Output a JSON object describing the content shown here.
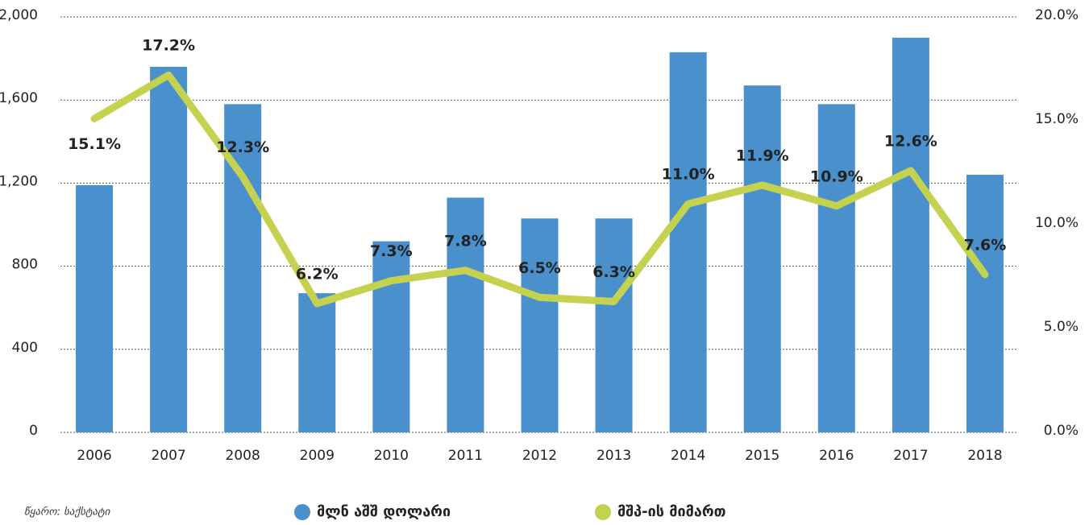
{
  "chart_data": {
    "type": "bar_line",
    "categories": [
      "2006",
      "2007",
      "2008",
      "2009",
      "2010",
      "2011",
      "2012",
      "2013",
      "2014",
      "2015",
      "2016",
      "2017",
      "2018"
    ],
    "series": [
      {
        "name": "მლნ აშშ დოლარი",
        "color": "#4a90cc",
        "type": "bar",
        "values": [
          1190,
          1760,
          1580,
          670,
          920,
          1130,
          1030,
          1030,
          1830,
          1670,
          1580,
          1900,
          1240
        ]
      },
      {
        "name": "მშპ-ის მიმართ",
        "color": "#c5d250",
        "type": "line",
        "axis": "y2",
        "values": [
          15.1,
          17.2,
          12.3,
          6.2,
          7.3,
          7.8,
          6.5,
          6.3,
          11.0,
          11.9,
          10.9,
          12.6,
          7.6
        ],
        "value_labels": [
          "15.1%",
          "17.2%",
          "12.3%",
          "6.2%",
          "7.3%",
          "7.8%",
          "6.5%",
          "6.3%",
          "11.0%",
          "11.9%",
          "10.9%",
          "12.6%",
          "7.6%"
        ]
      }
    ],
    "ylim": [
      0,
      2000
    ],
    "yticks": [
      0,
      400,
      800,
      {
        "value": 1200,
        "label": "1,200"
      },
      {
        "value": 1600,
        "label": "1,600"
      },
      {
        "value": 2000,
        "label": "2,000"
      }
    ],
    "y2lim": [
      0,
      20
    ],
    "y2ticks": [
      {
        "value": 0,
        "label": "0.0%"
      },
      {
        "value": 5,
        "label": "5.0%"
      },
      {
        "value": 10,
        "label": "10.0%"
      },
      {
        "value": 15,
        "label": "15.0%"
      },
      {
        "value": 20,
        "label": "20.0%"
      }
    ],
    "grid": true,
    "source": "წყარო: საქსტატი"
  }
}
